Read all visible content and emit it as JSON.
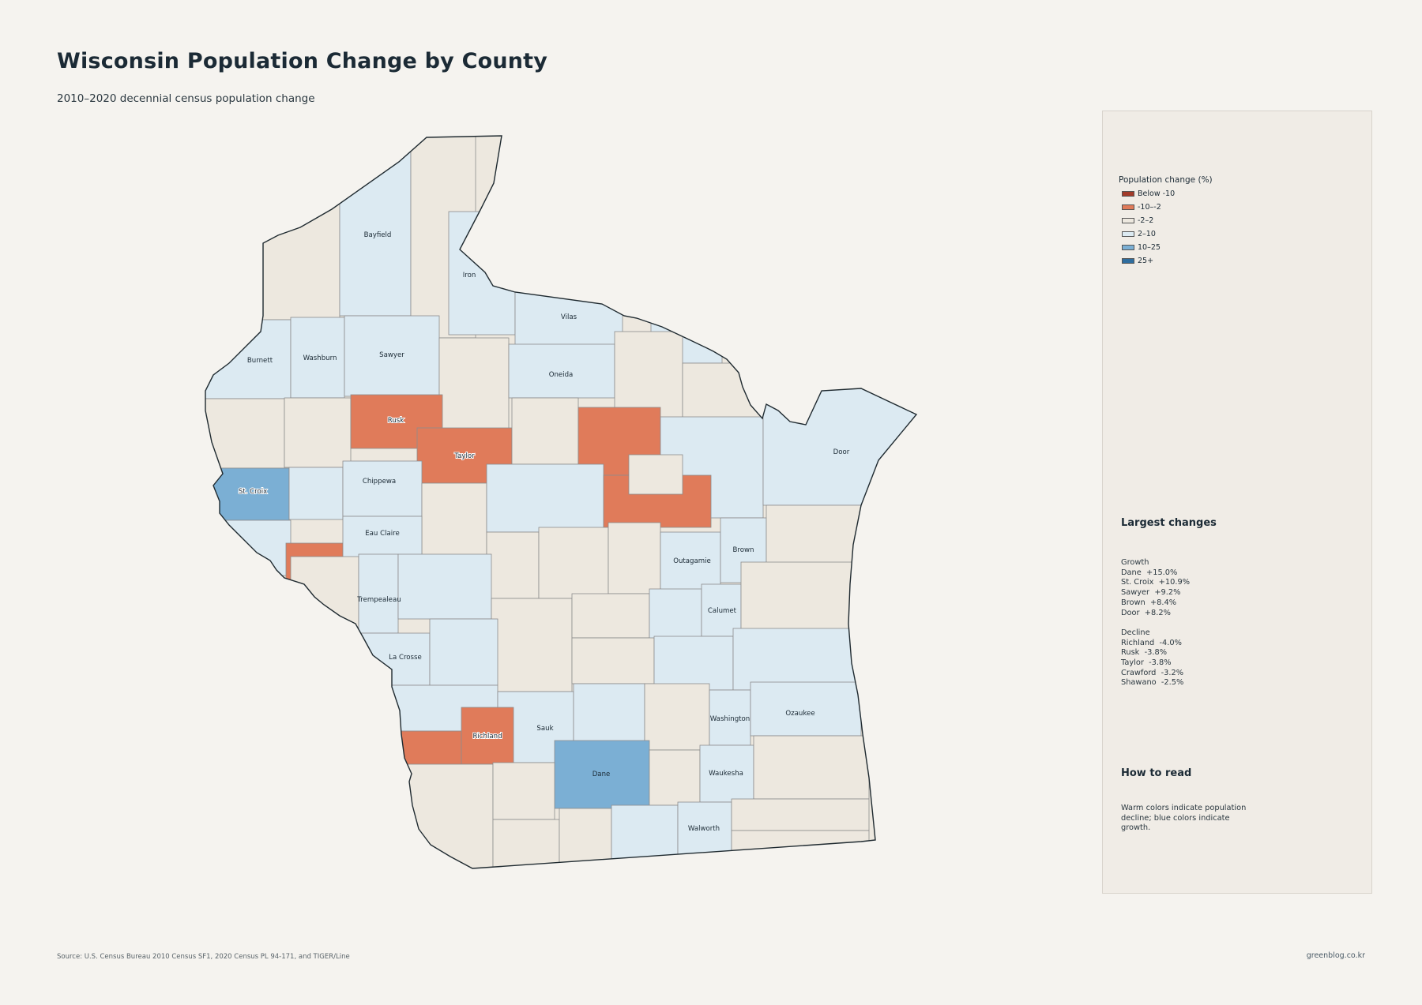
{
  "title": "Wisconsin Population Change by County",
  "subtitle": "2010–2020 decennial census population change",
  "colors": {
    "below_-10": "#a23b2a",
    "-10_-2": "#e07b5a",
    "-2_2": "#ede8df",
    "2_10": "#dceaf2",
    "10_25": "#7bafd4",
    "25_plus": "#2f6d9e",
    "background": "#f5f3ef"
  },
  "legend": {
    "title": "Population change (%)",
    "items": [
      {
        "label": "Below -10",
        "color": "#a23b2a"
      },
      {
        "label": "-10–-2",
        "color": "#e07b5a"
      },
      {
        "label": "-2–2",
        "color": "#ede8df"
      },
      {
        "label": "2–10",
        "color": "#dceaf2"
      },
      {
        "label": "10–25",
        "color": "#7bafd4"
      },
      {
        "label": "25+",
        "color": "#2f6d9e"
      }
    ]
  },
  "largest_changes": {
    "heading": "Largest changes",
    "growth_label": "Growth",
    "growth": [
      "Dane  +15.0%",
      "St. Croix  +10.9%",
      "Sawyer  +9.2%",
      "Brown  +8.4%",
      "Door  +8.2%"
    ],
    "decline_label": "Decline",
    "decline": [
      "Richland  -4.0%",
      "Rusk  -3.8%",
      "Taylor  -3.8%",
      "Crawford  -3.2%",
      "Shawano  -2.5%"
    ]
  },
  "how_to_read": {
    "heading": "How to read",
    "text": "Warm colors indicate population decline; blue colors indicate growth."
  },
  "county_labels": {
    "bayfield": "Bayfield",
    "iron": "Iron",
    "vilas": "Vilas",
    "burnett": "Burnett",
    "washburn": "Washburn",
    "sawyer": "Sawyer",
    "oneida": "Oneida",
    "rusk": "Rusk",
    "taylor": "Taylor",
    "st_croix": "St. Croix",
    "chippewa": "Chippewa",
    "door": "Door",
    "eau_claire": "Eau Claire",
    "outagamie": "Outagamie",
    "brown": "Brown",
    "trempealeau": "Trempealeau",
    "calumet": "Calumet",
    "la_crosse": "La Crosse",
    "washington": "Washington",
    "ozaukee": "Ozaukee",
    "sauk": "Sauk",
    "richland": "Richland",
    "dane": "Dane",
    "waukesha": "Waukesha",
    "walworth": "Walworth"
  },
  "source": "Source: U.S. Census Bureau 2010 Census SF1, 2020 Census PL 94-171, and TIGER/Line",
  "credit": "greenblog.co.kr"
}
